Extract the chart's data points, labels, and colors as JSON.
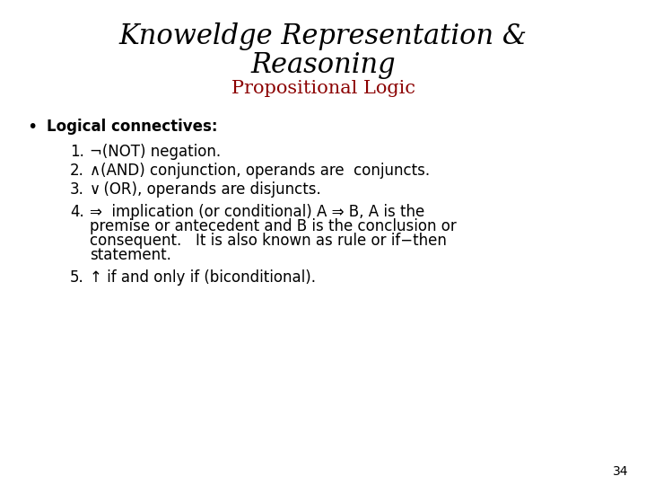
{
  "title_line1": "Knoweldge Representation &",
  "title_line2": "Reasoning",
  "subtitle": "Propositional Logic",
  "title_color": "#000000",
  "subtitle_color": "#8B0000",
  "background_color": "#ffffff",
  "bullet_label": "Logical connectives:",
  "item1": "¬(NOT) negation.",
  "item2": "∧(AND) conjunction, operands are  conjuncts.",
  "item3": "∨ (OR), operands are disjuncts.",
  "item4a": "⇒  implication (or conditional) A ⇒ B, A is the",
  "item4b": "premise or antecedent and B is the conclusion or",
  "item4c": "consequent.   It is also known as rule or if−then",
  "item4d": "statement.",
  "item5": "↑ if and only if (biconditional).",
  "page_number": "34",
  "title_fontsize": 22,
  "subtitle_fontsize": 15,
  "body_fontsize": 12,
  "bullet_fontsize": 12
}
